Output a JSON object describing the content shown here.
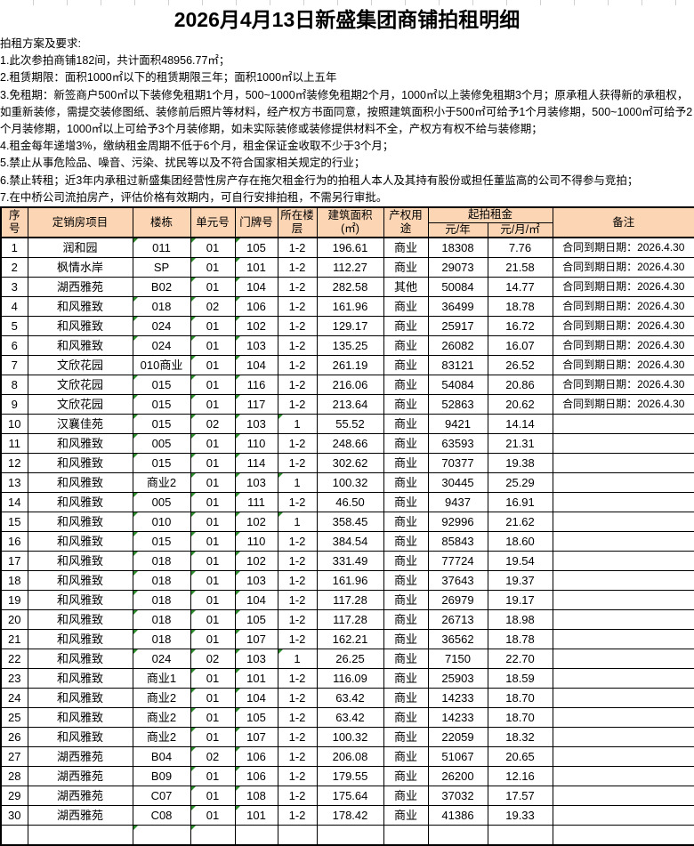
{
  "title": "2026月4月13日新盛集团商铺拍租明细",
  "notes": {
    "heading": "拍租方案及要求:",
    "items": [
      "1.此次参拍商铺182间，共计面积48956.77㎡；",
      "2.租赁期限：面积1000㎡以下的租赁期限三年；面积1000㎡以上五年",
      "3.免租期：新签商户500㎡以下装修免租期1个月，500~1000㎡装修免租期2个月，1000㎡以上装修免租期3个月；原承租人获得新的承租权，如重新装修，需提交装修图纸、装修前后照片等材料，经产权方书面同意，按照建筑面积小于500㎡可给予1个月装修期，500~1000㎡可给予2个月装修期，1000㎡以上可给予3个月装修期，如未实际装修或装修提供材料不全，产权方有权不给与装修期；",
      "4.租金每年递增3%，缴纳租金周期不低于6个月，租金保证金收取不少于3个月；",
      "5.禁止从事危险品、噪音、污染、扰民等以及不符合国家相关规定的行业；",
      "6.禁止转租；近3年内承租过新盛集团经营性房产存在拖欠租金行为的拍租人本人及其持有股份或担任董监高的公司不得参与竞拍；",
      "7.在中桥公司流拍房产，评估价格有效期内，可自行安排拍租，不需另行审批。"
    ]
  },
  "table": {
    "header": {
      "seq": "序号",
      "project": "定销房项目",
      "building": "楼栋",
      "unit": "单元号",
      "door": "门牌号",
      "floor": "所在楼层",
      "area": "建筑面积(㎡)",
      "use": "产权用途",
      "rent_group": "起拍租金",
      "rent_year": "元/年",
      "rent_month": "元/月/㎡",
      "remark": "备注"
    },
    "rows": [
      [
        "1",
        "润和园",
        "011",
        "01",
        "105",
        "1-2",
        "196.61",
        "商业",
        "18308",
        "7.76",
        "合同到期日期：2026.4.30"
      ],
      [
        "2",
        "枫情水岸",
        "SP",
        "01",
        "101",
        "1-2",
        "112.27",
        "商业",
        "29073",
        "21.58",
        "合同到期日期：2026.4.30"
      ],
      [
        "3",
        "湖西雅苑",
        "B02",
        "01",
        "104",
        "1-2",
        "282.58",
        "其他",
        "50084",
        "14.77",
        "合同到期日期：2026.4.30"
      ],
      [
        "4",
        "和风雅致",
        "018",
        "02",
        "106",
        "1-2",
        "161.96",
        "商业",
        "36499",
        "18.78",
        "合同到期日期：2026.4.30"
      ],
      [
        "5",
        "和风雅致",
        "024",
        "01",
        "102",
        "1-2",
        "129.17",
        "商业",
        "25917",
        "16.72",
        "合同到期日期：2026.4.30"
      ],
      [
        "6",
        "和风雅致",
        "024",
        "01",
        "103",
        "1-2",
        "135.25",
        "商业",
        "26082",
        "16.07",
        "合同到期日期：2026.4.30"
      ],
      [
        "7",
        "文欣花园",
        "010商业",
        "01",
        "104",
        "1-2",
        "261.19",
        "商业",
        "83121",
        "26.52",
        "合同到期日期：2026.4.30"
      ],
      [
        "8",
        "文欣花园",
        "015",
        "01",
        "116",
        "1-2",
        "216.06",
        "商业",
        "54084",
        "20.86",
        "合同到期日期：2026.4.30"
      ],
      [
        "9",
        "文欣花园",
        "015",
        "01",
        "117",
        "1-2",
        "213.64",
        "商业",
        "52863",
        "20.62",
        "合同到期日期：2026.4.30"
      ],
      [
        "10",
        "汉襄佳苑",
        "015",
        "02",
        "103",
        "1",
        "55.52",
        "商业",
        "9421",
        "14.14",
        ""
      ],
      [
        "11",
        "和风雅致",
        "005",
        "01",
        "110",
        "1-2",
        "248.66",
        "商业",
        "63593",
        "21.31",
        ""
      ],
      [
        "12",
        "和风雅致",
        "015",
        "01",
        "114",
        "1-2",
        "302.62",
        "商业",
        "70377",
        "19.38",
        ""
      ],
      [
        "13",
        "和风雅致",
        "商业2",
        "01",
        "103",
        "1",
        "100.32",
        "商业",
        "30445",
        "25.29",
        ""
      ],
      [
        "14",
        "和风雅致",
        "005",
        "01",
        "111",
        "1-2",
        "46.50",
        "商业",
        "9437",
        "16.91",
        ""
      ],
      [
        "15",
        "和风雅致",
        "010",
        "01",
        "102",
        "1",
        "358.45",
        "商业",
        "92996",
        "21.62",
        ""
      ],
      [
        "16",
        "和风雅致",
        "015",
        "01",
        "110",
        "1-2",
        "384.54",
        "商业",
        "85843",
        "18.60",
        ""
      ],
      [
        "17",
        "和风雅致",
        "018",
        "01",
        "102",
        "1-2",
        "331.49",
        "商业",
        "77724",
        "19.54",
        ""
      ],
      [
        "18",
        "和风雅致",
        "018",
        "01",
        "103",
        "1-2",
        "161.96",
        "商业",
        "37643",
        "19.37",
        ""
      ],
      [
        "19",
        "和风雅致",
        "018",
        "01",
        "104",
        "1-2",
        "117.28",
        "商业",
        "26979",
        "19.17",
        ""
      ],
      [
        "20",
        "和风雅致",
        "018",
        "01",
        "105",
        "1-2",
        "117.28",
        "商业",
        "26713",
        "18.98",
        ""
      ],
      [
        "21",
        "和风雅致",
        "018",
        "01",
        "107",
        "1-2",
        "162.21",
        "商业",
        "36562",
        "18.78",
        ""
      ],
      [
        "22",
        "和风雅致",
        "024",
        "02",
        "103",
        "1",
        "26.25",
        "商业",
        "7150",
        "22.70",
        ""
      ],
      [
        "23",
        "和风雅致",
        "商业1",
        "01",
        "101",
        "1-2",
        "116.09",
        "商业",
        "25903",
        "18.59",
        ""
      ],
      [
        "24",
        "和风雅致",
        "商业2",
        "01",
        "104",
        "1-2",
        "63.42",
        "商业",
        "14233",
        "18.70",
        ""
      ],
      [
        "25",
        "和风雅致",
        "商业2",
        "01",
        "105",
        "1-2",
        "63.42",
        "商业",
        "14233",
        "18.70",
        ""
      ],
      [
        "26",
        "和风雅致",
        "商业2",
        "01",
        "107",
        "1-2",
        "100.32",
        "商业",
        "22059",
        "18.32",
        ""
      ],
      [
        "27",
        "湖西雅苑",
        "B04",
        "02",
        "106",
        "1-2",
        "206.08",
        "商业",
        "51067",
        "20.65",
        ""
      ],
      [
        "28",
        "湖西雅苑",
        "B09",
        "01",
        "106",
        "1-2",
        "179.55",
        "商业",
        "26200",
        "12.16",
        ""
      ],
      [
        "29",
        "湖西雅苑",
        "C07",
        "01",
        "108",
        "1-2",
        "175.64",
        "商业",
        "37032",
        "17.57",
        ""
      ],
      [
        "30",
        "湖西雅苑",
        "C08",
        "01",
        "101",
        "1-2",
        "178.42",
        "商业",
        "41386",
        "19.33",
        ""
      ]
    ]
  },
  "icons": {
    "number_stored_as_text": "green-triangle"
  },
  "colors": {
    "header_bg": "#FCD5B4",
    "border": "#000000",
    "triangle_green": "#2E8B2E",
    "gridline_gray": "#D0D0D0"
  }
}
